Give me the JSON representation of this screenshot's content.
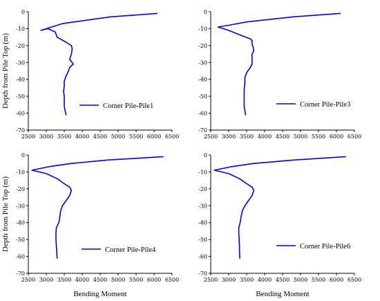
{
  "colors": {
    "series": "#0000dd",
    "axes": "#000000",
    "background": "#ffffff"
  },
  "chart_data": [
    {
      "type": "line",
      "xlim": [
        2500,
        6500
      ],
      "ylim": [
        -70,
        0
      ],
      "x_ticks": [
        2500,
        3000,
        3500,
        4000,
        4500,
        5000,
        5500,
        6000,
        6500
      ],
      "y_ticks": [
        0,
        -10,
        -20,
        -30,
        -40,
        -50,
        -60,
        -70
      ],
      "xlabel": "",
      "ylabel": "Depth from Pile Top (m)",
      "legend": "right",
      "series": [
        {
          "name": "Corner Pile-Pile1",
          "x": [
            6080,
            4800,
            3450,
            3150,
            2850,
            3050,
            3250,
            3300,
            3550,
            3700,
            3720,
            3700,
            3650,
            3750,
            3650,
            3600,
            3550,
            3500,
            3500,
            3480,
            3500,
            3500,
            3500,
            3550
          ],
          "y": [
            -1,
            -3,
            -7,
            -9,
            -11,
            -10,
            -12,
            -15,
            -18,
            -20,
            -22,
            -25,
            -28,
            -31,
            -33,
            -36,
            -38,
            -41,
            -44,
            -47,
            -50,
            -53,
            -56,
            -61
          ]
        }
      ]
    },
    {
      "type": "line",
      "xlim": [
        2500,
        6500
      ],
      "ylim": [
        -70,
        0
      ],
      "x_ticks": [
        2500,
        3000,
        3500,
        4000,
        4500,
        5000,
        5500,
        6000,
        6500
      ],
      "y_ticks": [
        0,
        -10,
        -20,
        -30,
        -40,
        -50,
        -60,
        -70
      ],
      "xlabel": "",
      "ylabel": "",
      "legend": "right",
      "series": [
        {
          "name": "Corner Pile-Pile3",
          "x": [
            6100,
            4800,
            3500,
            3000,
            2700,
            3000,
            3350,
            3600,
            3650,
            3650,
            3680,
            3700,
            3650,
            3650,
            3650,
            3600,
            3500,
            3450,
            3450,
            3430,
            3430,
            3430,
            3430,
            3470
          ],
          "y": [
            -1,
            -3,
            -6,
            -8,
            -9,
            -11,
            -14,
            -16,
            -17,
            -19,
            -21,
            -23,
            -25,
            -28,
            -31,
            -33,
            -36,
            -39,
            -42,
            -46,
            -50,
            -53,
            -56,
            -61
          ]
        }
      ]
    },
    {
      "type": "line",
      "xlim": [
        2500,
        6500
      ],
      "ylim": [
        -70,
        0
      ],
      "x_ticks": [
        2500,
        3000,
        3500,
        4000,
        4500,
        5000,
        5500,
        6000,
        6500
      ],
      "y_ticks": [
        0,
        -10,
        -20,
        -30,
        -40,
        -50,
        -60,
        -70
      ],
      "xlabel": "Bending Moment",
      "ylabel": "Depth from Pile Top (m)",
      "legend": "right",
      "series": [
        {
          "name": "Corner Pile-Pile4",
          "x": [
            6250,
            4700,
            3700,
            3050,
            2600,
            3000,
            3300,
            3500,
            3650,
            3700,
            3650,
            3550,
            3450,
            3400,
            3380,
            3350,
            3280,
            3270,
            3270,
            3280,
            3290,
            3300
          ],
          "y": [
            -1,
            -3,
            -5,
            -7,
            -9,
            -11,
            -14,
            -17,
            -19,
            -21,
            -24,
            -27,
            -30,
            -33,
            -36,
            -40,
            -43,
            -46,
            -50,
            -54,
            -57,
            -61
          ]
        }
      ]
    },
    {
      "type": "line",
      "xlim": [
        2500,
        6500
      ],
      "ylim": [
        -70,
        0
      ],
      "x_ticks": [
        2500,
        3000,
        3500,
        4000,
        4500,
        5000,
        5500,
        6000,
        6500
      ],
      "y_ticks": [
        0,
        -10,
        -20,
        -30,
        -40,
        -50,
        -60,
        -70
      ],
      "xlabel": "Bending Moment",
      "ylabel": "",
      "legend": "right",
      "series": [
        {
          "name": "Corner Pile-Pile6",
          "x": [
            6250,
            4800,
            3700,
            3050,
            2600,
            3000,
            3300,
            3500,
            3650,
            3700,
            3650,
            3550,
            3450,
            3380,
            3350,
            3320,
            3280,
            3280,
            3290,
            3300,
            3300,
            3310
          ],
          "y": [
            -1,
            -3,
            -5,
            -7,
            -9,
            -11,
            -14,
            -17,
            -19,
            -21,
            -24,
            -27,
            -30,
            -33,
            -36,
            -40,
            -43,
            -46,
            -50,
            -54,
            -57,
            -61
          ]
        }
      ]
    }
  ]
}
